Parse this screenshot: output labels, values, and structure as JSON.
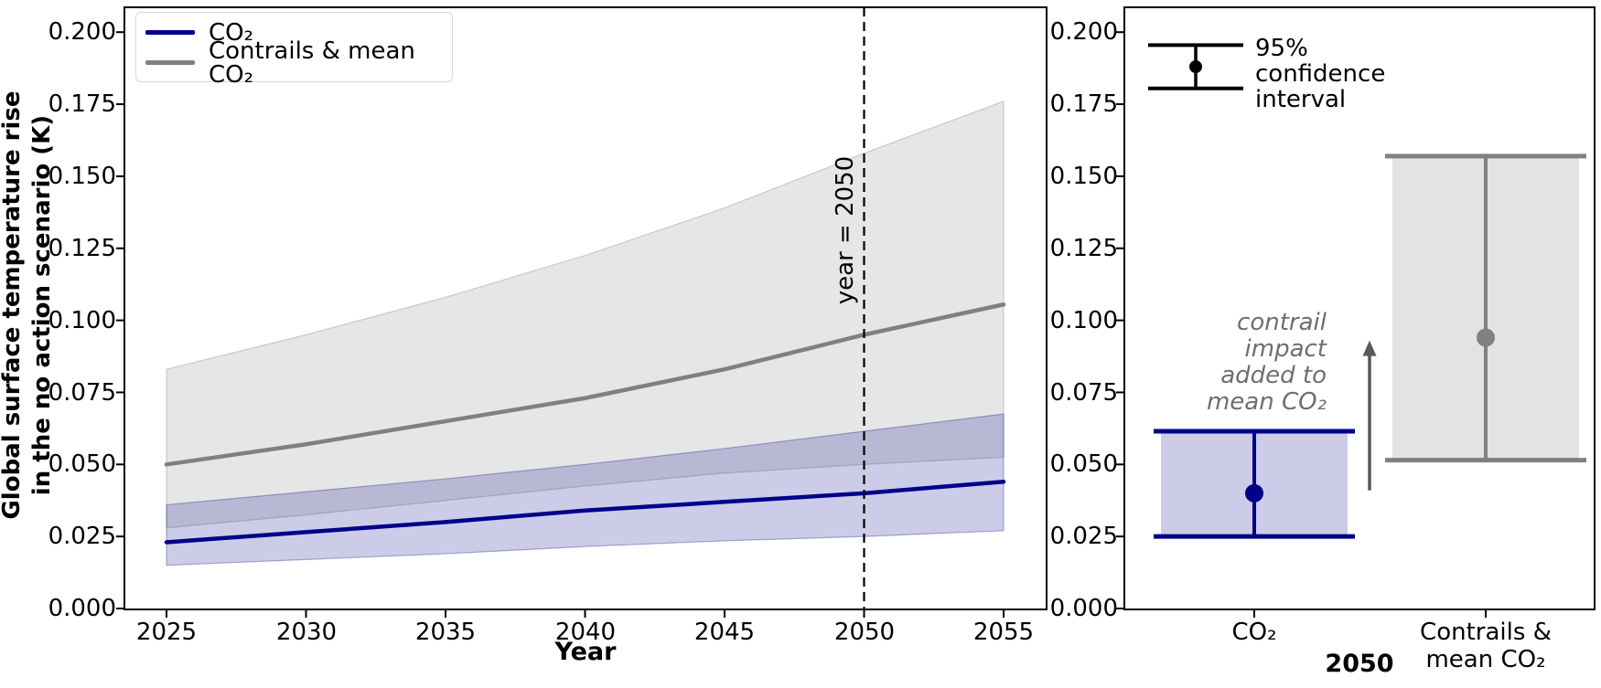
{
  "figure": {
    "description": "Two-panel matplotlib-style figure of projected global surface temperature rise from aviation CO2 and contrails"
  },
  "colors": {
    "co2_line": "#00008B",
    "contrails_line": "#808080",
    "co2_band_fill": "rgba(0,0,139,0.2)",
    "contrails_band_fill": "rgba(128,128,128,0.2)",
    "annotation_text": "#6e6e6e",
    "arrow": "#595959",
    "dashed_vline": "#000000",
    "ci_legend_glyph": "#000000"
  },
  "left_panel": {
    "ylabel_line1": "Global surface temperature rise",
    "ylabel_line2": "in the no action scenario (K)",
    "xlabel": "Year",
    "yticks": [
      "0.000",
      "0.025",
      "0.050",
      "0.075",
      "0.100",
      "0.125",
      "0.150",
      "0.175",
      "0.200"
    ],
    "xticks": [
      "2025",
      "2030",
      "2035",
      "2040",
      "2045",
      "2050",
      "2055"
    ],
    "legend": {
      "entry1": "CO₂",
      "entry2": "Contrails & mean CO₂"
    },
    "vline_label": "year = 2050"
  },
  "right_panel": {
    "yticks": [
      "0.000",
      "0.025",
      "0.050",
      "0.075",
      "0.100",
      "0.125",
      "0.150",
      "0.175",
      "0.200"
    ],
    "xtick1": "CO₂",
    "xtick2_line1": "Contrails &",
    "xtick2_line2": "mean CO₂",
    "xlabel": "2050",
    "ci_legend_line1": "95%",
    "ci_legend_line2": "confidence",
    "ci_legend_line3": "interval",
    "annotation_line1": "contrail",
    "annotation_line2": "impact",
    "annotation_line3": "added to",
    "annotation_line4": "mean CO₂"
  },
  "chart_data": [
    {
      "type": "line",
      "panel": "left",
      "title": "",
      "xlabel": "Year",
      "ylabel": "Global surface temperature rise in the no action scenario (K)",
      "x": [
        2025,
        2030,
        2035,
        2040,
        2045,
        2050,
        2055
      ],
      "series": [
        {
          "name": "CO₂",
          "color": "#00008B",
          "values": [
            0.023,
            0.0265,
            0.03,
            0.034,
            0.037,
            0.04,
            0.044
          ],
          "ci_low": [
            0.015,
            0.017,
            0.019,
            0.0215,
            0.0235,
            0.025,
            0.027
          ],
          "ci_high": [
            0.036,
            0.0405,
            0.045,
            0.05,
            0.0555,
            0.0615,
            0.0675
          ]
        },
        {
          "name": "Contrails & mean CO₂",
          "color": "#808080",
          "values": [
            0.05,
            0.057,
            0.065,
            0.073,
            0.083,
            0.095,
            0.1055
          ],
          "ci_low": [
            0.028,
            0.0325,
            0.0375,
            0.0425,
            0.047,
            0.05,
            0.0525
          ],
          "ci_high": [
            0.083,
            0.095,
            0.108,
            0.1225,
            0.139,
            0.158,
            0.176
          ]
        }
      ],
      "vline_x": 2050,
      "xlim": [
        2023.5,
        2056.5
      ],
      "ylim": [
        0,
        0.2086
      ],
      "ytick_values": [
        0,
        0.025,
        0.05,
        0.075,
        0.1,
        0.125,
        0.15,
        0.175,
        0.2
      ],
      "grid": false,
      "legend_position": "upper-left"
    },
    {
      "type": "errorbar",
      "panel": "right",
      "title": "",
      "xlabel": "2050",
      "categories": [
        "CO₂",
        "Contrails & mean CO₂"
      ],
      "points": [
        {
          "name": "CO₂",
          "color": "#00008B",
          "mean": 0.04,
          "ci_low": 0.025,
          "ci_high": 0.0615
        },
        {
          "name": "Contrails & mean CO₂",
          "color": "#808080",
          "mean": 0.094,
          "ci_low": 0.0515,
          "ci_high": 0.157
        }
      ],
      "ci_legend_glyph": {
        "low": 0.1805,
        "mid": 0.188,
        "high": 0.1955
      },
      "annotation_arrow": {
        "from_value": 0.041,
        "to_value": 0.093
      },
      "ylim": [
        0,
        0.2086
      ],
      "ytick_values": [
        0,
        0.025,
        0.05,
        0.075,
        0.1,
        0.125,
        0.15,
        0.175,
        0.2
      ],
      "grid": false
    }
  ]
}
